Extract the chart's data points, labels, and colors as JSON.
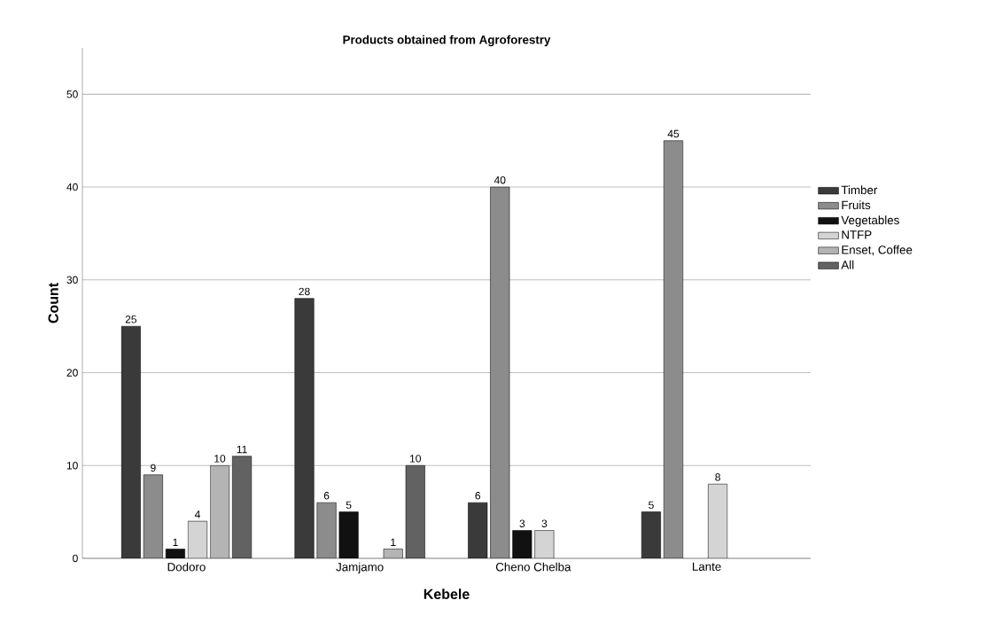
{
  "chart_data": {
    "type": "bar",
    "title": "Products obtained from Agroforestry",
    "xlabel": "Kebele",
    "ylabel": "Count",
    "categories": [
      "Dodoro",
      "Jamjamo",
      "Cheno Chelba",
      "Lante"
    ],
    "series": [
      {
        "name": "Timber",
        "color": "#3a3a3a",
        "values": [
          25,
          28,
          6,
          5
        ]
      },
      {
        "name": "Fruits",
        "color": "#8c8c8c",
        "values": [
          9,
          6,
          40,
          45
        ]
      },
      {
        "name": "Vegetables",
        "color": "#111111",
        "values": [
          1,
          5,
          3,
          null
        ]
      },
      {
        "name": "NTFP",
        "color": "#d4d4d4",
        "values": [
          4,
          null,
          3,
          8
        ]
      },
      {
        "name": "Enset, Coffee",
        "color": "#b4b4b4",
        "values": [
          10,
          1,
          null,
          null
        ]
      },
      {
        "name": "All",
        "color": "#626262",
        "values": [
          11,
          10,
          null,
          null
        ]
      }
    ],
    "ylim": [
      0,
      55
    ],
    "yticks": [
      0,
      10,
      20,
      30,
      40,
      50
    ],
    "grid": "y",
    "legend": "right",
    "data_labels": true
  }
}
